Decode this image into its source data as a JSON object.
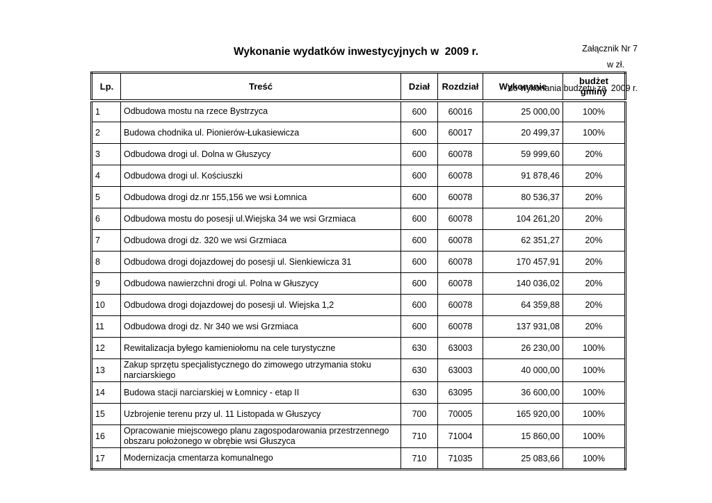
{
  "header": {
    "attachment_line1": "Załącznik Nr 7",
    "attachment_line2": "do wykonania budżetu za  2009 r.",
    "title": "Wykonanie wydatków inwestycyjnych w  2009 r.",
    "currency_note": "w zł."
  },
  "table": {
    "columns": [
      "Lp.",
      "Treść",
      "Dział",
      "Rozdział",
      "Wykonanie",
      "budżet gminy"
    ],
    "rows": [
      {
        "lp": "1",
        "tresc": "Odbudowa mostu na rzece Bystrzyca",
        "dzial": "600",
        "rozdzial": "60016",
        "wykonanie": "25 000,00",
        "budzet": "100%"
      },
      {
        "lp": "2",
        "tresc": "Budowa chodnika ul. Pionierów-Łukasiewicza",
        "dzial": "600",
        "rozdzial": "60017",
        "wykonanie": "20 499,37",
        "budzet": "100%"
      },
      {
        "lp": "3",
        "tresc": "Odbudowa drogi ul. Dolna w Głuszycy",
        "dzial": "600",
        "rozdzial": "60078",
        "wykonanie": "59 999,60",
        "budzet": "20%"
      },
      {
        "lp": "4",
        "tresc": "Odbudowa drogi ul. Kościuszki",
        "dzial": "600",
        "rozdzial": "60078",
        "wykonanie": "91 878,46",
        "budzet": "20%"
      },
      {
        "lp": "5",
        "tresc": "Odbudowa drogi dz.nr 155,156 we wsi Łomnica",
        "dzial": "600",
        "rozdzial": "60078",
        "wykonanie": "80 536,37",
        "budzet": "20%"
      },
      {
        "lp": "6",
        "tresc": "Odbudowa mostu do posesji ul.Wiejska 34 we wsi Grzmiaca",
        "dzial": "600",
        "rozdzial": "60078",
        "wykonanie": "104 261,20",
        "budzet": "20%"
      },
      {
        "lp": "7",
        "tresc": "Odbudowa drogi dz. 320 we wsi Grzmiaca",
        "dzial": "600",
        "rozdzial": "60078",
        "wykonanie": "62 351,27",
        "budzet": "20%"
      },
      {
        "lp": "8",
        "tresc": "Odbudowa drogi dojazdowej do posesji ul. Sienkiewicza 31",
        "dzial": "600",
        "rozdzial": "60078",
        "wykonanie": "170 457,91",
        "budzet": "20%"
      },
      {
        "lp": "9",
        "tresc": "Odbudowa nawierzchni drogi ul. Polna w Głuszycy",
        "dzial": "600",
        "rozdzial": "60078",
        "wykonanie": "140 036,02",
        "budzet": "20%"
      },
      {
        "lp": "10",
        "tresc": "Odbudowa drogi dojazdowej do posesji ul. Wiejska 1,2",
        "dzial": "600",
        "rozdzial": "60078",
        "wykonanie": "64 359,88",
        "budzet": "20%"
      },
      {
        "lp": "11",
        "tresc": "Odbudowa drogi dz. Nr 340 we wsi Grzmiaca",
        "dzial": "600",
        "rozdzial": "60078",
        "wykonanie": "137 931,08",
        "budzet": "20%"
      },
      {
        "lp": "12",
        "tresc": "Rewitalizacja byłego kamieniołomu na cele turystyczne",
        "dzial": "630",
        "rozdzial": "63003",
        "wykonanie": "26 230,00",
        "budzet": "100%"
      },
      {
        "lp": "13",
        "tresc": "Zakup sprzętu specjalistycznego do zimowego utrzymania stoku narciarskiego",
        "dzial": "630",
        "rozdzial": "63003",
        "wykonanie": "40 000,00",
        "budzet": "100%"
      },
      {
        "lp": "14",
        "tresc": "Budowa stacji narciarskiej w Łomnicy - etap II",
        "dzial": "630",
        "rozdzial": "63095",
        "wykonanie": "36 600,00",
        "budzet": "100%"
      },
      {
        "lp": "15",
        "tresc": "Uzbrojenie terenu przy ul. 11 Listopada w Głuszycy",
        "dzial": "700",
        "rozdzial": "70005",
        "wykonanie": "165 920,00",
        "budzet": "100%"
      },
      {
        "lp": "16",
        "tresc": "Opracowanie miejscowego planu zagospodarowania przestrzennego obszaru położonego w obrębie wsi Głuszyca",
        "dzial": "710",
        "rozdzial": "71004",
        "wykonanie": "15 860,00",
        "budzet": "100%"
      },
      {
        "lp": "17",
        "tresc": "Modernizacja cmentarza komunalnego",
        "dzial": "710",
        "rozdzial": "71035",
        "wykonanie": "25 083,66",
        "budzet": "100%"
      }
    ]
  }
}
